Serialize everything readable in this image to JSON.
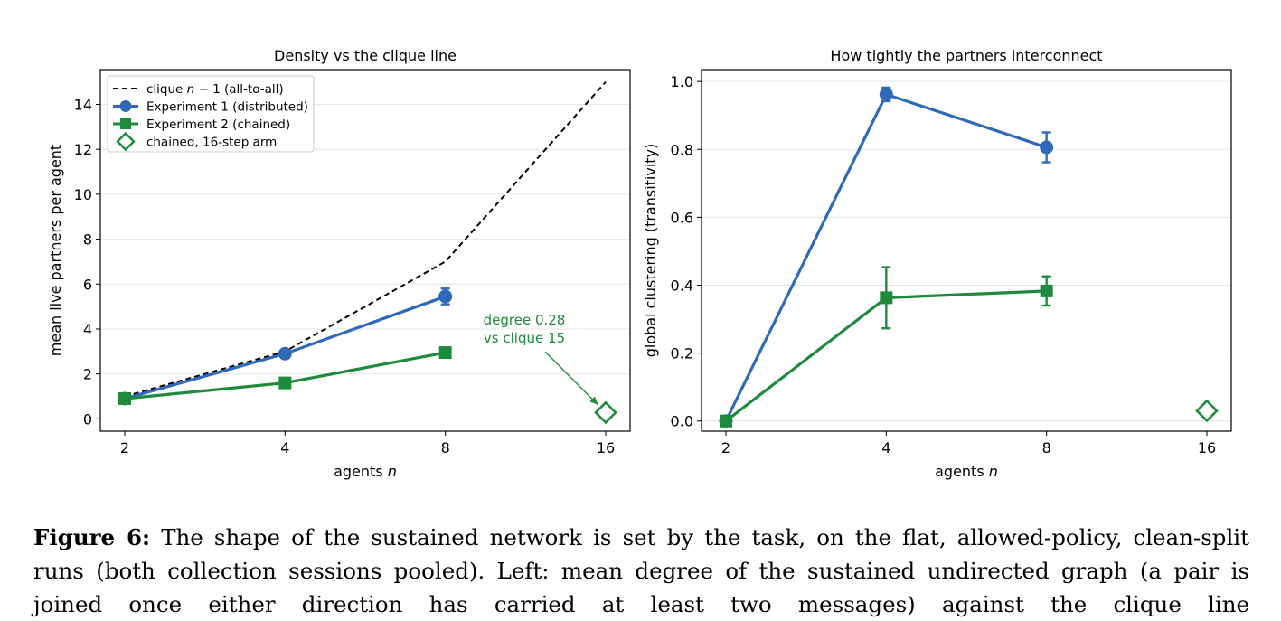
{
  "figure": {
    "label": "Figure 6:",
    "caption_lines": [
      "The shape of the sustained network is set by the task, on the flat, allowed-policy, clean-split",
      "runs (both collection sessions pooled). Left: mean degree of the sustained undirected graph (a pair is",
      "joined once either direction has carried at least two messages) against the clique line"
    ]
  },
  "colors": {
    "blue": "#2f6ab8",
    "green": "#1e8a3b",
    "black": "#000000",
    "grid": "#e6e6e6"
  },
  "chart_data": [
    {
      "type": "line",
      "title": "Density vs the clique line",
      "xlabel_prefix": "agents ",
      "xlabel_var": "n",
      "ylabel": "mean live partners per agent",
      "x_ticks": [
        2,
        4,
        8,
        16
      ],
      "x_scale": "log2",
      "ylim": [
        -0.55,
        15.55
      ],
      "y_ticks": [
        "0",
        "2",
        "4",
        "6",
        "8",
        "10",
        "12",
        "14"
      ],
      "grid": "y",
      "legend_position": "top-left",
      "series": [
        {
          "name": "clique n−1 (all-to-all)",
          "legend_prefix": "clique ",
          "legend_var": "n",
          "legend_suffix": " − 1 (all-to-all)",
          "style": "dashed",
          "color": "#000000",
          "x": [
            2,
            4,
            8,
            16
          ],
          "y": [
            1,
            3,
            7,
            15
          ]
        },
        {
          "name": "Experiment 1 (distributed)",
          "marker": "circle",
          "color": "#2f6ab8",
          "x": [
            2,
            4,
            8
          ],
          "y": [
            0.9,
            2.9,
            5.45
          ],
          "yerr": [
            0.05,
            0.1,
            0.35
          ]
        },
        {
          "name": "Experiment 2 (chained)",
          "marker": "square",
          "color": "#1e8a3b",
          "x": [
            2,
            4,
            8
          ],
          "y": [
            0.9,
            1.6,
            2.95
          ],
          "yerr": [
            0.05,
            0.05,
            0.08
          ]
        },
        {
          "name": "chained, 16-step arm",
          "marker": "diamond-open",
          "color": "#1e8a3b",
          "x": [
            16
          ],
          "y": [
            0.28
          ]
        }
      ],
      "annotation": {
        "lines": [
          "degree 0.28",
          "vs clique 15"
        ],
        "x": 16,
        "y": 0.28,
        "color": "#1e8a3b"
      }
    },
    {
      "type": "line",
      "title": "How tightly the partners interconnect",
      "xlabel_prefix": "agents ",
      "xlabel_var": "n",
      "ylabel": "global clustering (transitivity)",
      "x_ticks": [
        2,
        4,
        8,
        16
      ],
      "x_scale": "log2",
      "ylim": [
        -0.03,
        1.035
      ],
      "y_ticks": [
        "0.0",
        "0.2",
        "0.4",
        "0.6",
        "0.8",
        "1.0"
      ],
      "grid": "y",
      "series": [
        {
          "name": "Experiment 1 (distributed)",
          "marker": "circle",
          "color": "#2f6ab8",
          "x": [
            2,
            4,
            8
          ],
          "y": [
            0.0,
            0.962,
            0.806
          ],
          "yerr": [
            0.0,
            0.02,
            0.044
          ]
        },
        {
          "name": "Experiment 2 (chained)",
          "marker": "square",
          "color": "#1e8a3b",
          "x": [
            2,
            4,
            8
          ],
          "y": [
            0.0,
            0.363,
            0.383
          ],
          "yerr": [
            0.0,
            0.09,
            0.043
          ]
        },
        {
          "name": "chained, 16-step arm",
          "marker": "diamond-open",
          "color": "#1e8a3b",
          "x": [
            16
          ],
          "y": [
            0.03
          ]
        }
      ]
    }
  ]
}
